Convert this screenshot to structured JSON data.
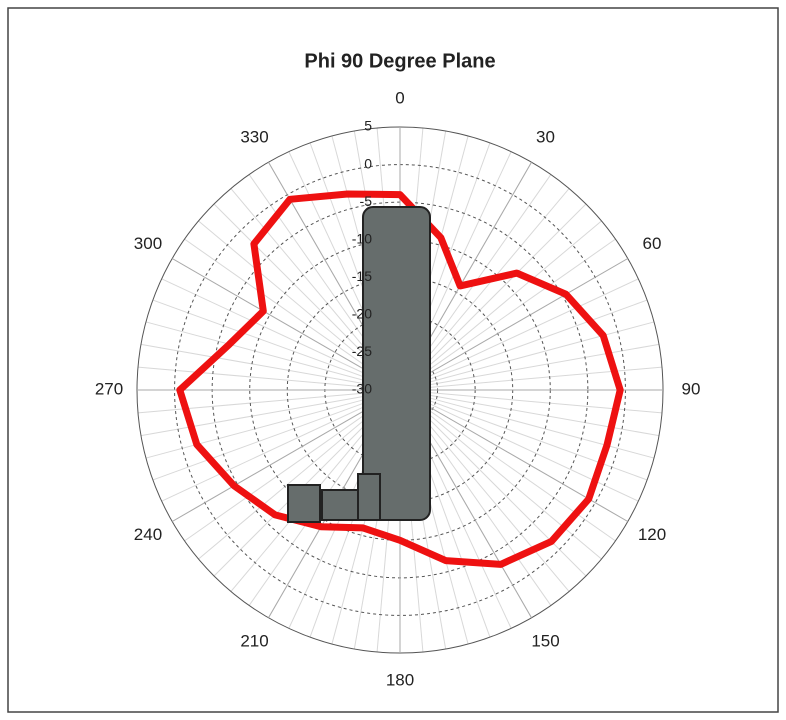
{
  "chart_data": {
    "type": "polar",
    "title": "Phi 90 Degree Plane",
    "rlim": [
      -30,
      5
    ],
    "rticks": [
      5,
      0,
      -5,
      -10,
      -15,
      -20,
      -25,
      -30
    ],
    "thetaticks": [
      0,
      30,
      60,
      90,
      120,
      150,
      180,
      210,
      240,
      270,
      300,
      330
    ],
    "theta": [
      0,
      15,
      30,
      45,
      60,
      75,
      90,
      105,
      120,
      135,
      150,
      165,
      180,
      195,
      210,
      225,
      240,
      255,
      270,
      285,
      300,
      315,
      330,
      345
    ],
    "series": [
      {
        "color": "#ee1111",
        "values": [
          -4,
          -9,
          -14,
          -8,
          -4.5,
          -2,
          -0.7,
          -1.5,
          -1,
          -1.5,
          -3.2,
          -6.5,
          -10,
          -11,
          -9,
          -6.5,
          -4.5,
          -2,
          -0.7,
          -6.5,
          -9,
          -2.5,
          -0.7,
          -3
        ]
      }
    ],
    "grid": true
  }
}
